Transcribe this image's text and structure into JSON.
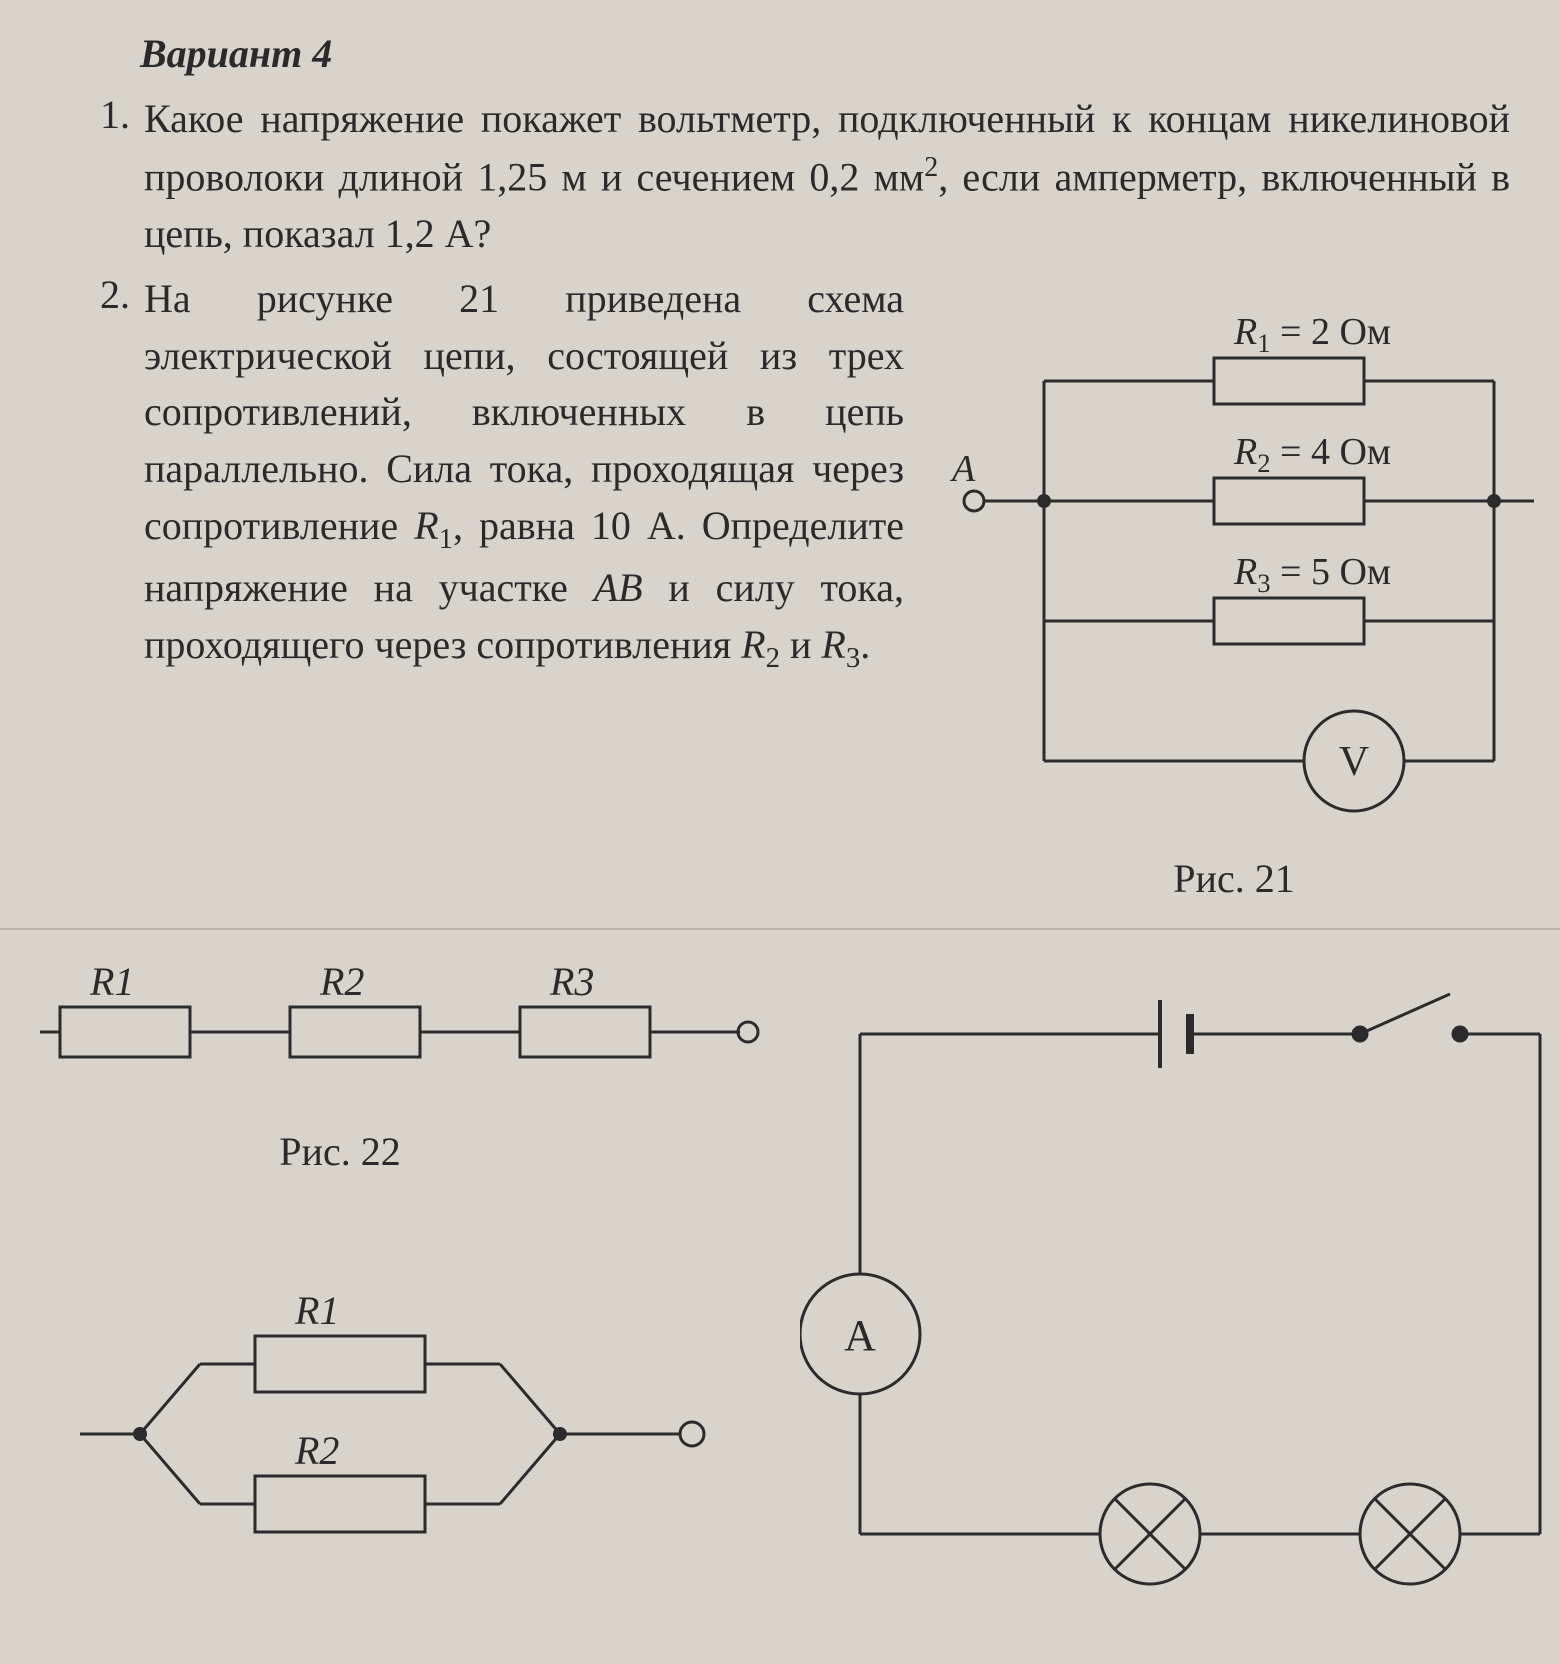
{
  "header": "Вариант 4",
  "p1": {
    "num": "1.",
    "text_parts": [
      "Какое напряжение покажет вольтметр, подключенный к концам никелиновой проволоки длиной 1,25 м и сечением 0,2 мм",
      "2",
      ", если амперметр, включенный в цепь, показал 1,2 А?"
    ]
  },
  "p2": {
    "num": "2.",
    "text_parts": [
      "На рисунке 21 приведена схема электрической цепи, состоящей из трех сопротивлений, включенных в цепь параллельно. Сила тока, проходящая через сопротивление ",
      "R",
      "1",
      ", равна 10 А. Определите напряжение на участке ",
      "AB",
      " и силу тока, проходящего через сопротивления ",
      "R",
      "2",
      " и ",
      "R",
      "3",
      "."
    ]
  },
  "fig21": {
    "caption": "Рис. 21",
    "A_label": "A",
    "V_label": "V",
    "R1_label": "R",
    "R1_sub": "1",
    "R1_val": " = 2 Ом",
    "R2_label": "R",
    "R2_sub": "2",
    "R2_val": " = 4 Ом",
    "R3_label": "R",
    "R3_sub": "3",
    "R3_val": " = 5 Ом",
    "stroke": "#2b2b2b",
    "stroke_width": 3,
    "fontsize": 38
  },
  "fig22": {
    "caption": "Рис. 22",
    "R1": "R1",
    "R2": "R2",
    "R3": "R3",
    "stroke": "#2b2b2b",
    "stroke_width": 3,
    "fontsize": 40
  },
  "fig23": {
    "R1": "R1",
    "R2": "R2",
    "stroke": "#2b2b2b",
    "stroke_width": 3,
    "fontsize": 40
  },
  "fig24": {
    "A_label": "A",
    "stroke": "#2b2b2b",
    "stroke_width": 3,
    "fontsize": 44
  },
  "colors": {
    "paper": "#d8d4cc",
    "ink": "#2a2a2a"
  }
}
